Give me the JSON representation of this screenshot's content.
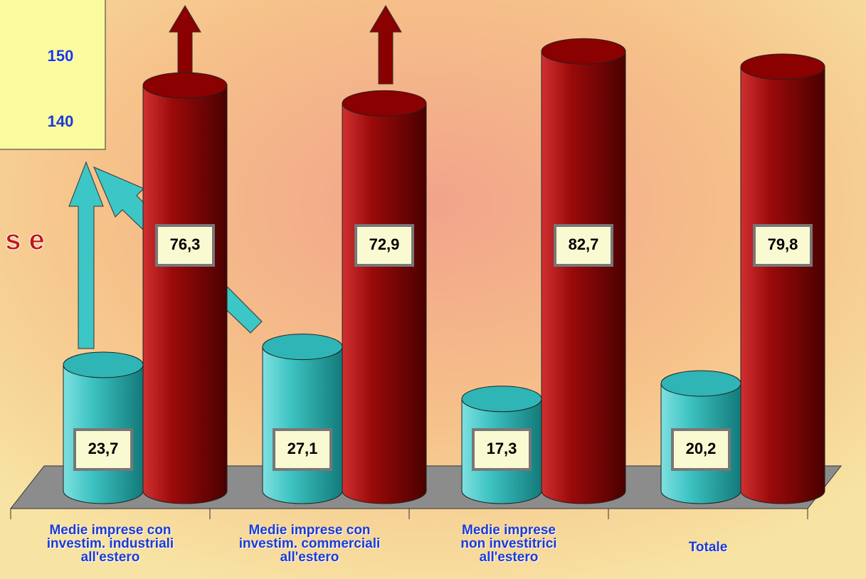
{
  "chart_data": {
    "type": "cylinder-bar",
    "annotations": [
      "150",
      "140",
      "s e"
    ],
    "categories": [
      "Medie imprese con\ninvestim. industriali\nall'estero",
      "Medie imprese con\ninvestim. commerciali\nall'estero",
      "Medie imprese\nnon investitrici\nall'estero",
      "Totale"
    ],
    "series": [
      {
        "color": "#2fb5b5",
        "values": [
          23.7,
          27.1,
          17.3,
          20.2
        ],
        "value_labels": [
          "23,7",
          "27,1",
          "17,3",
          "20,2"
        ]
      },
      {
        "color": "#8b0000",
        "values": [
          76.3,
          72.9,
          82.7,
          79.8
        ],
        "value_labels": [
          "76,3",
          "72,9",
          "82,7",
          "79,8"
        ]
      }
    ]
  }
}
